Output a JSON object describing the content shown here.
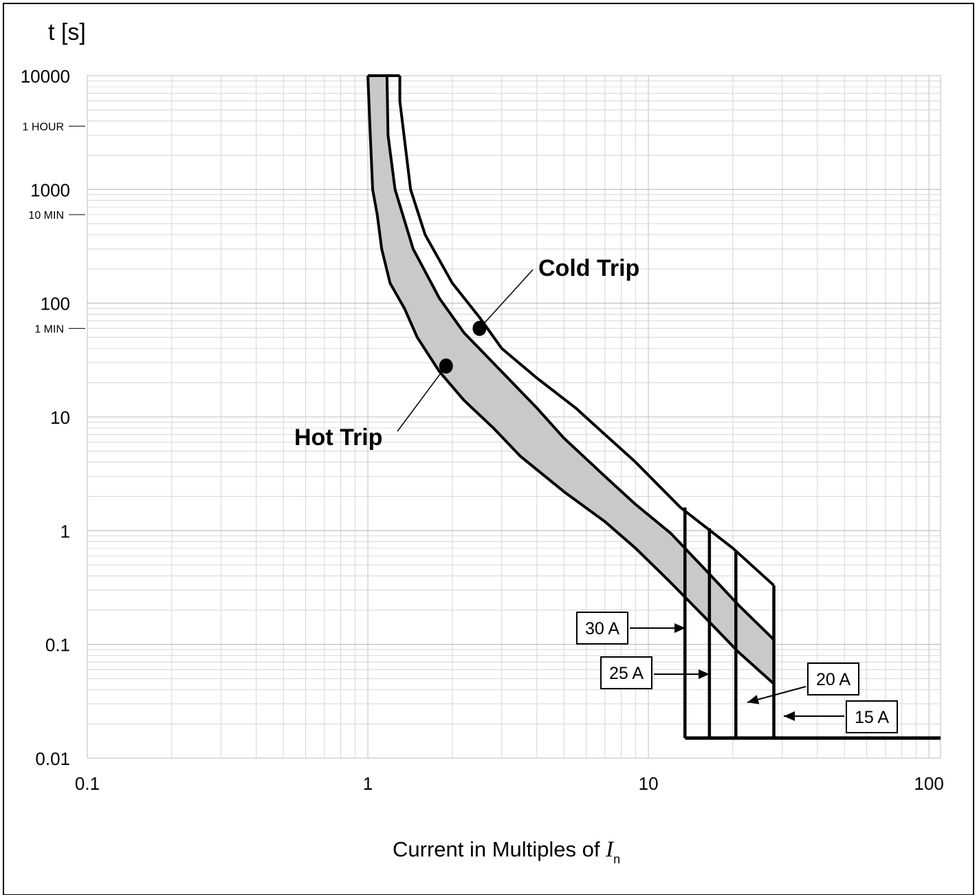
{
  "chart_data": {
    "type": "line",
    "title": "",
    "ylabel": "t [s]",
    "xlabel_main": "Current in Multiples of ",
    "xlabel_symbol": "I",
    "xlabel_sub": "n",
    "xscale": "log",
    "yscale": "log",
    "xlim": [
      0.1,
      110
    ],
    "ylim": [
      0.01,
      10000
    ],
    "grid": true,
    "x_ticks": [
      {
        "value": 0.1,
        "label": "0.1"
      },
      {
        "value": 1,
        "label": "1"
      },
      {
        "value": 10,
        "label": "10"
      },
      {
        "value": 100,
        "label": "100"
      }
    ],
    "y_ticks": [
      {
        "value": 10000,
        "label": "10000"
      },
      {
        "value": 1000,
        "label": "1000"
      },
      {
        "value": 100,
        "label": "100"
      },
      {
        "value": 10,
        "label": "10"
      },
      {
        "value": 1,
        "label": "1"
      },
      {
        "value": 0.1,
        "label": "0.1"
      },
      {
        "value": 0.01,
        "label": "0.01"
      }
    ],
    "y_time_markers": [
      {
        "value": 3600,
        "label": "1 HOUR"
      },
      {
        "value": 600,
        "label": "10 MIN"
      },
      {
        "value": 60,
        "label": "1 MIN"
      }
    ],
    "series": [
      {
        "points": [
          [
            1.0,
            10000
          ],
          [
            1.02,
            3000
          ],
          [
            1.04,
            1000
          ],
          [
            1.08,
            600
          ],
          [
            1.12,
            300
          ],
          [
            1.2,
            150
          ],
          [
            1.35,
            90
          ],
          [
            1.5,
            50
          ],
          [
            1.8,
            25
          ],
          [
            2.2,
            14
          ],
          [
            2.8,
            8
          ],
          [
            3.5,
            4.5
          ],
          [
            5,
            2.2
          ],
          [
            7,
            1.2
          ],
          [
            9,
            0.7
          ],
          [
            12,
            0.35
          ],
          [
            16,
            0.17
          ],
          [
            21,
            0.085
          ],
          [
            28,
            0.045
          ]
        ]
      },
      {
        "points": [
          [
            1.17,
            10000
          ],
          [
            1.18,
            3000
          ],
          [
            1.25,
            1000
          ],
          [
            1.45,
            300
          ],
          [
            1.8,
            110
          ],
          [
            2.2,
            55
          ],
          [
            3.0,
            25
          ],
          [
            4,
            12
          ],
          [
            5,
            6.5
          ],
          [
            7,
            3
          ],
          [
            9,
            1.7
          ],
          [
            12,
            0.95
          ],
          [
            16,
            0.45
          ],
          [
            21,
            0.22
          ],
          [
            28,
            0.11
          ]
        ]
      },
      {
        "points": [
          [
            1.3,
            10000
          ],
          [
            1.3,
            6000
          ],
          [
            1.42,
            1000
          ],
          [
            1.6,
            400
          ],
          [
            2.0,
            150
          ],
          [
            2.5,
            75
          ],
          [
            3,
            40
          ],
          [
            4,
            22
          ],
          [
            5.5,
            12
          ],
          [
            7,
            7
          ],
          [
            9,
            4
          ],
          [
            13,
            1.6
          ],
          [
            20,
            0.7
          ],
          [
            28,
            0.33
          ]
        ]
      }
    ],
    "magnetic_trips": [
      {
        "label": "30 A",
        "x": 13.5,
        "top": 1.6
      },
      {
        "label": "25 A",
        "x": 16.5,
        "top": 1.05
      },
      {
        "label": "20 A",
        "x": 20.5,
        "top": 0.65
      },
      {
        "label": "15 A",
        "x": 28,
        "top": 0.33
      }
    ],
    "instantaneous_floor": {
      "y": 0.015,
      "x_start": 13.5,
      "x_end": 110
    },
    "annotations": [
      {
        "text": "Cold Trip",
        "point": [
          2.5,
          60
        ]
      },
      {
        "text": "Hot Trip",
        "point": [
          1.9,
          28
        ]
      }
    ]
  }
}
